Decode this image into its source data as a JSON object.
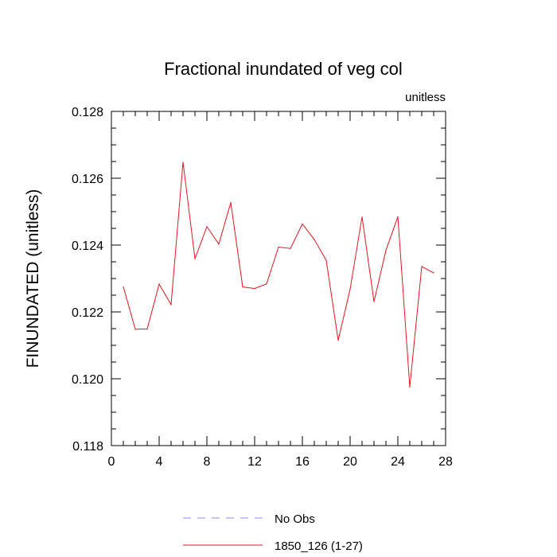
{
  "chart_data": {
    "type": "line",
    "title": "Fractional inundated of veg col",
    "units_label": "unitless",
    "ylabel": "FINUNDATED  (unitless)",
    "xlabel": "",
    "xlim": [
      0,
      28
    ],
    "ylim": [
      0.118,
      0.128
    ],
    "x_ticks": [
      0,
      4,
      8,
      12,
      16,
      20,
      24,
      28
    ],
    "x_tick_labels": [
      "0",
      "4",
      "8",
      "12",
      "16",
      "20",
      "24",
      "28"
    ],
    "y_ticks": [
      0.118,
      0.12,
      0.122,
      0.124,
      0.126,
      0.128
    ],
    "y_tick_labels": [
      "0.118",
      "0.120",
      "0.122",
      "0.124",
      "0.126",
      "0.128"
    ],
    "grid": false,
    "legend_position": "bottom",
    "series": [
      {
        "name": "1850_126 (1-27)",
        "color": "#e8141e",
        "style": "solid",
        "x": [
          1,
          2,
          3,
          4,
          5,
          6,
          7,
          8,
          9,
          10,
          11,
          12,
          13,
          14,
          15,
          16,
          17,
          18,
          19,
          20,
          21,
          22,
          23,
          24,
          25,
          26,
          27
        ],
        "values": [
          0.12275,
          0.12148,
          0.12149,
          0.12283,
          0.12222,
          0.12648,
          0.12359,
          0.12455,
          0.12403,
          0.12527,
          0.12275,
          0.1227,
          0.12284,
          0.12394,
          0.1239,
          0.12463,
          0.12417,
          0.12354,
          0.12115,
          0.12268,
          0.12484,
          0.12231,
          0.12384,
          0.12485,
          0.11975,
          0.12336,
          0.12317
        ]
      }
    ],
    "legend": [
      {
        "label": "No Obs",
        "color": "#8a8af0",
        "style": "dashed"
      },
      {
        "label": "1850_126 (1-27)",
        "color": "#e8141e",
        "style": "solid"
      }
    ]
  }
}
